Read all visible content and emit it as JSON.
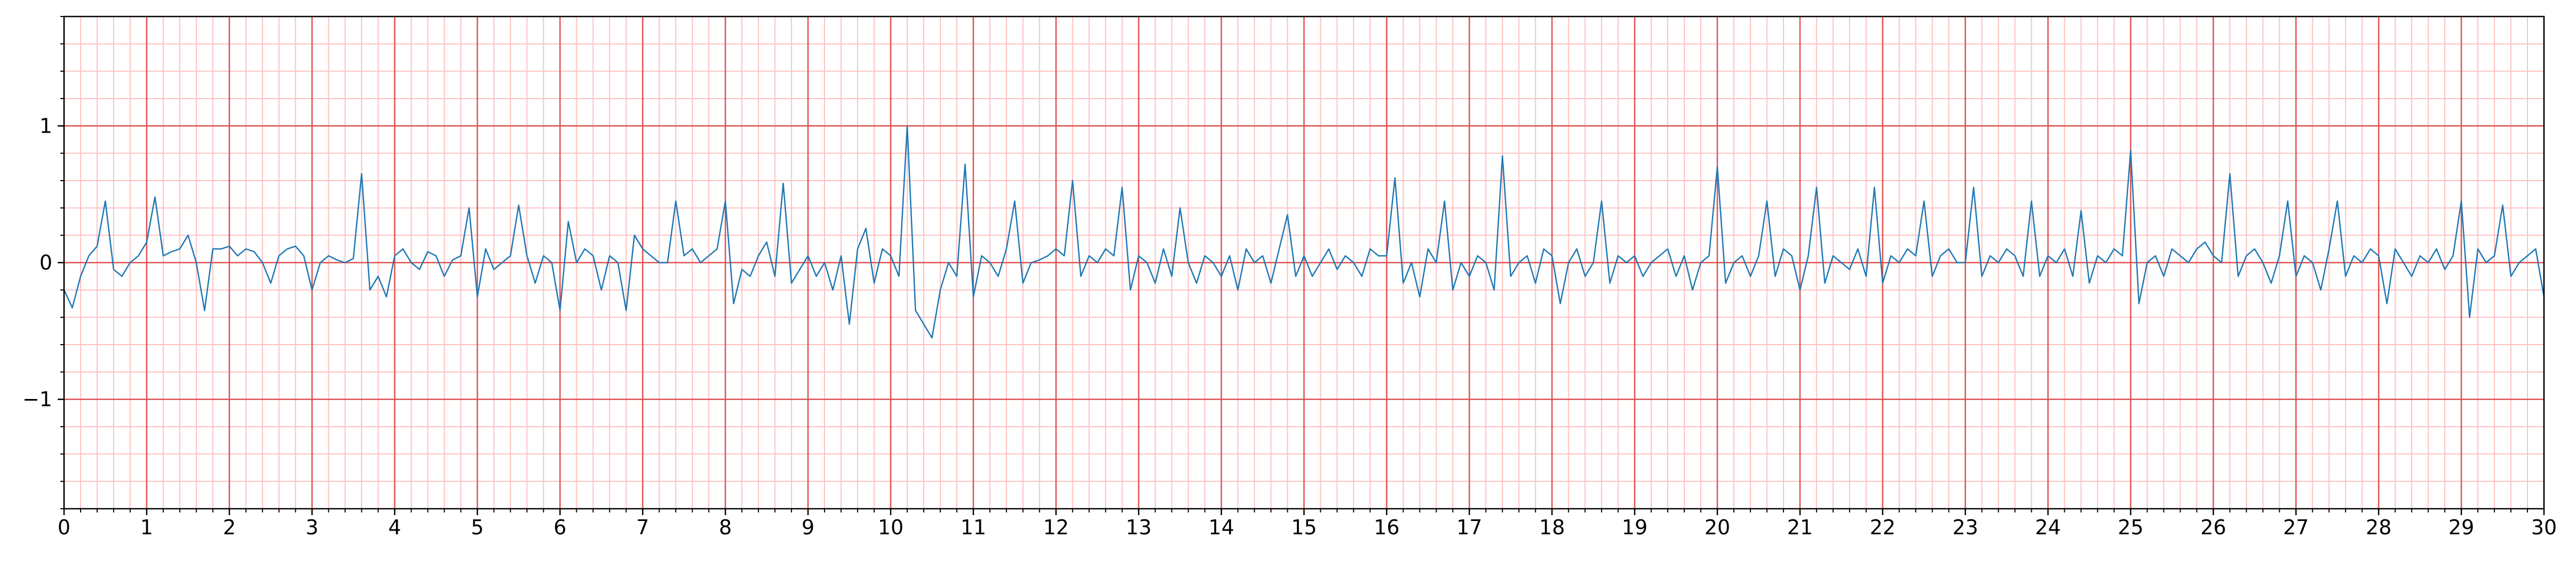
{
  "chart_data": {
    "type": "line",
    "color": "#1f77b4",
    "grid": true,
    "major_grid_color": "#e05050",
    "minor_grid_color": "#ffc0c0",
    "minor_grid_step": 0.2,
    "xlim": [
      0,
      30
    ],
    "ylim": [
      -1.8,
      1.8
    ],
    "xticks": [
      0,
      1,
      2,
      3,
      4,
      5,
      6,
      7,
      8,
      9,
      10,
      11,
      12,
      13,
      14,
      15,
      16,
      17,
      18,
      19,
      20,
      21,
      22,
      23,
      24,
      25,
      26,
      27,
      28,
      29,
      30
    ],
    "yticks": [
      {
        "value": -1,
        "label": "−1"
      },
      0,
      1
    ],
    "x": [
      0,
      0.1,
      0.2,
      0.3,
      0.4,
      0.5,
      0.6,
      0.7,
      0.8,
      0.9,
      1,
      1.1,
      1.2,
      1.3,
      1.4,
      1.5,
      1.6,
      1.7,
      1.8,
      1.9,
      2,
      2.1,
      2.2,
      2.3,
      2.4,
      2.5,
      2.6,
      2.7,
      2.8,
      2.9,
      3,
      3.1,
      3.2,
      3.3,
      3.4,
      3.5,
      3.6,
      3.7,
      3.8,
      3.9,
      4,
      4.1,
      4.2,
      4.3,
      4.4,
      4.5,
      4.6,
      4.7,
      4.8,
      4.9,
      5,
      5.1,
      5.2,
      5.3,
      5.4,
      5.5,
      5.6,
      5.7,
      5.8,
      5.9,
      6,
      6.1,
      6.2,
      6.3,
      6.4,
      6.5,
      6.6,
      6.7,
      6.8,
      6.9,
      7,
      7.1,
      7.2,
      7.3,
      7.4,
      7.5,
      7.6,
      7.7,
      7.8,
      7.9,
      8,
      8.1,
      8.2,
      8.3,
      8.4,
      8.5,
      8.6,
      8.7,
      8.8,
      8.9,
      9,
      9.1,
      9.2,
      9.3,
      9.4,
      9.5,
      9.6,
      9.7,
      9.8,
      9.9,
      10,
      10.1,
      10.2,
      10.3,
      10.4,
      10.5,
      10.6,
      10.7,
      10.8,
      10.9,
      11,
      11.1,
      11.2,
      11.3,
      11.4,
      11.5,
      11.6,
      11.7,
      11.8,
      11.9,
      12,
      12.1,
      12.2,
      12.3,
      12.4,
      12.5,
      12.6,
      12.7,
      12.8,
      12.9,
      13,
      13.1,
      13.2,
      13.3,
      13.4,
      13.5,
      13.6,
      13.7,
      13.8,
      13.9,
      14,
      14.1,
      14.2,
      14.3,
      14.4,
      14.5,
      14.6,
      14.7,
      14.8,
      14.9,
      15,
      15.1,
      15.2,
      15.3,
      15.4,
      15.5,
      15.6,
      15.7,
      15.8,
      15.9,
      16,
      16.1,
      16.2,
      16.3,
      16.4,
      16.5,
      16.6,
      16.7,
      16.8,
      16.9,
      17,
      17.1,
      17.2,
      17.3,
      17.4,
      17.5,
      17.6,
      17.7,
      17.8,
      17.9,
      18,
      18.1,
      18.2,
      18.3,
      18.4,
      18.5,
      18.6,
      18.7,
      18.8,
      18.9,
      19,
      19.1,
      19.2,
      19.3,
      19.4,
      19.5,
      19.6,
      19.7,
      19.8,
      19.9,
      20,
      20.1,
      20.2,
      20.3,
      20.4,
      20.5,
      20.6,
      20.7,
      20.8,
      20.9,
      21,
      21.1,
      21.2,
      21.3,
      21.4,
      21.5,
      21.6,
      21.7,
      21.8,
      21.9,
      22,
      22.1,
      22.2,
      22.3,
      22.4,
      22.5,
      22.6,
      22.7,
      22.8,
      22.9,
      23,
      23.1,
      23.2,
      23.3,
      23.4,
      23.5,
      23.6,
      23.7,
      23.8,
      23.9,
      24,
      24.1,
      24.2,
      24.3,
      24.4,
      24.5,
      24.6,
      24.7,
      24.8,
      24.9,
      25,
      25.1,
      25.2,
      25.3,
      25.4,
      25.5,
      25.6,
      25.7,
      25.8,
      25.9,
      26,
      26.1,
      26.2,
      26.3,
      26.4,
      26.5,
      26.6,
      26.7,
      26.8,
      26.9,
      27,
      27.1,
      27.2,
      27.3,
      27.4,
      27.5,
      27.6,
      27.7,
      27.8,
      27.9,
      28,
      28.1,
      28.2,
      28.3,
      28.4,
      28.5,
      28.6,
      28.7,
      28.8,
      28.9,
      29,
      29.1,
      29.2,
      29.3,
      29.4,
      29.5,
      29.6,
      29.7,
      29.8,
      29.9,
      30
    ],
    "values": [
      -0.2,
      -0.33,
      -0.1,
      0.05,
      0.12,
      0.45,
      -0.05,
      -0.1,
      0.0,
      0.05,
      0.15,
      0.48,
      0.05,
      0.08,
      0.1,
      0.2,
      0.0,
      -0.35,
      0.1,
      0.1,
      0.12,
      0.05,
      0.1,
      0.08,
      0.0,
      -0.15,
      0.05,
      0.1,
      0.12,
      0.05,
      -0.2,
      0.0,
      0.05,
      0.02,
      0.0,
      0.03,
      0.65,
      -0.2,
      -0.1,
      -0.25,
      0.05,
      0.1,
      0.0,
      -0.05,
      0.08,
      0.05,
      -0.1,
      0.02,
      0.05,
      0.4,
      -0.25,
      0.1,
      -0.05,
      0.0,
      0.05,
      0.42,
      0.05,
      -0.15,
      0.05,
      0.0,
      -0.35,
      0.3,
      0.0,
      0.1,
      0.05,
      -0.2,
      0.05,
      0.0,
      -0.35,
      0.2,
      0.1,
      0.05,
      0.0,
      0.0,
      0.45,
      0.05,
      0.1,
      0.0,
      0.05,
      0.1,
      0.45,
      -0.3,
      -0.05,
      -0.1,
      0.05,
      0.15,
      -0.1,
      0.58,
      -0.15,
      -0.05,
      0.05,
      -0.1,
      0.0,
      -0.2,
      0.05,
      -0.45,
      0.1,
      0.25,
      -0.15,
      0.1,
      0.05,
      -0.1,
      1.0,
      -0.35,
      -0.45,
      -0.55,
      -0.2,
      0.0,
      -0.1,
      0.72,
      -0.25,
      0.05,
      0.0,
      -0.1,
      0.1,
      0.45,
      -0.15,
      0.0,
      0.02,
      0.05,
      0.1,
      0.05,
      0.6,
      -0.1,
      0.05,
      0.0,
      0.1,
      0.05,
      0.55,
      -0.2,
      0.05,
      0.0,
      -0.15,
      0.1,
      -0.1,
      0.4,
      0.0,
      -0.15,
      0.05,
      0.0,
      -0.1,
      0.05,
      -0.2,
      0.1,
      0.0,
      0.05,
      -0.15,
      0.1,
      0.35,
      -0.1,
      0.05,
      -0.1,
      0.0,
      0.1,
      -0.05,
      0.05,
      0.0,
      -0.1,
      0.1,
      0.05,
      0.05,
      0.62,
      -0.15,
      0.0,
      -0.25,
      0.1,
      0.0,
      0.45,
      -0.2,
      0.0,
      -0.1,
      0.05,
      0.0,
      -0.2,
      0.78,
      -0.1,
      0.0,
      0.05,
      -0.15,
      0.1,
      0.05,
      -0.3,
      0.0,
      0.1,
      -0.1,
      0.0,
      0.45,
      -0.15,
      0.05,
      0.0,
      0.05,
      -0.1,
      0.0,
      0.05,
      0.1,
      -0.1,
      0.05,
      -0.2,
      0.0,
      0.05,
      0.7,
      -0.15,
      0.0,
      0.05,
      -0.1,
      0.05,
      0.45,
      -0.1,
      0.1,
      0.05,
      -0.2,
      0.05,
      0.55,
      -0.15,
      0.05,
      0.0,
      -0.05,
      0.1,
      -0.1,
      0.55,
      -0.15,
      0.05,
      0.0,
      0.1,
      0.05,
      0.45,
      -0.1,
      0.05,
      0.1,
      0.0,
      0.0,
      0.55,
      -0.1,
      0.05,
      0.0,
      0.1,
      0.05,
      -0.1,
      0.45,
      -0.1,
      0.05,
      0.0,
      0.1,
      -0.1,
      0.38,
      -0.15,
      0.05,
      0.0,
      0.1,
      0.05,
      0.82,
      -0.3,
      0.0,
      0.05,
      -0.1,
      0.1,
      0.05,
      0.0,
      0.1,
      0.15,
      0.05,
      0.0,
      0.65,
      -0.1,
      0.05,
      0.1,
      0.0,
      -0.15,
      0.05,
      0.45,
      -0.1,
      0.05,
      0.0,
      -0.2,
      0.1,
      0.45,
      -0.1,
      0.05,
      0.0,
      0.1,
      0.05,
      -0.3,
      0.1,
      0.0,
      -0.1,
      0.05,
      0.0,
      0.1,
      -0.05,
      0.05,
      0.45,
      -0.4,
      0.1,
      0.0,
      0.05,
      0.42,
      -0.1,
      0.0,
      0.05,
      0.1,
      -0.25
    ]
  }
}
